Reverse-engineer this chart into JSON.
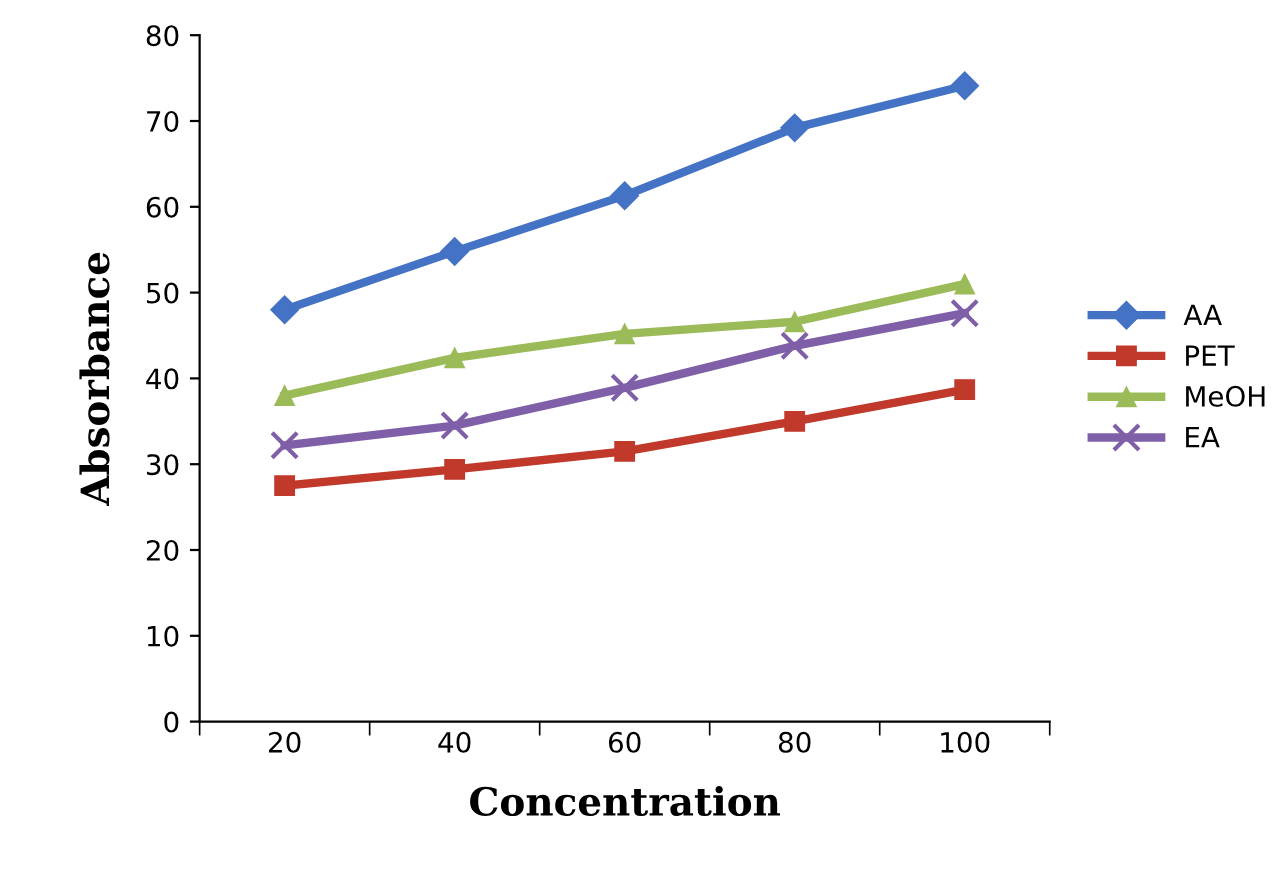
{
  "chart_data": {
    "type": "line",
    "xlabel": "Concentration",
    "ylabel": "Absorbance",
    "categories": [
      "20",
      "40",
      "60",
      "80",
      "100"
    ],
    "series": [
      {
        "name": "AA",
        "color": "#4472c4",
        "marker": "diamond",
        "values": [
          48,
          54.8,
          61.3,
          69.2,
          74.1
        ]
      },
      {
        "name": "PET",
        "color": "#c0392b",
        "marker": "square",
        "values": [
          27.5,
          29.4,
          31.5,
          35,
          38.7
        ]
      },
      {
        "name": "MeOH",
        "color": "#9bbb59",
        "marker": "triangle",
        "values": [
          38,
          42.4,
          45.2,
          46.6,
          51
        ]
      },
      {
        "name": "EA",
        "color": "#7e5fa8",
        "marker": "cross",
        "values": [
          32.2,
          34.5,
          38.9,
          43.8,
          47.6
        ]
      }
    ],
    "ylim": [
      0,
      80
    ],
    "yticks": [
      0,
      10,
      20,
      30,
      40,
      50,
      60,
      70,
      80
    ],
    "grid": false,
    "legend": "right"
  }
}
